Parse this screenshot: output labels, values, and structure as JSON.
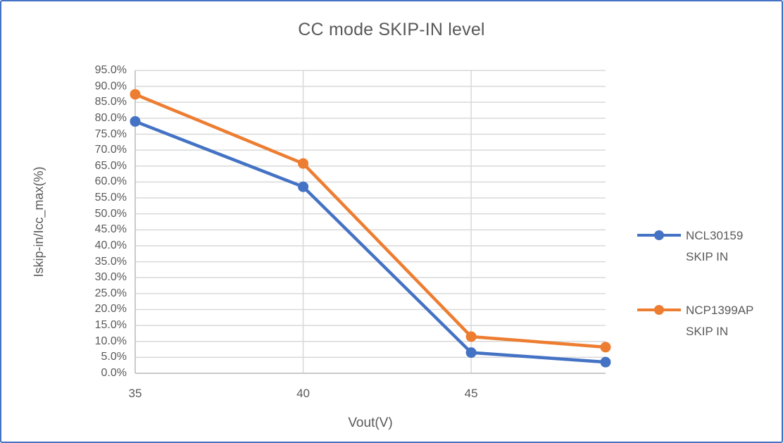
{
  "window": {
    "background": "#FFFFFF",
    "border_color": "#4472C4"
  },
  "chart_data": {
    "type": "line",
    "title": "CC mode SKIP-IN level",
    "xlabel": "Vout(V)",
    "ylabel": "Iskip-in/Icc_max(%)",
    "x": [
      35,
      40,
      45,
      49
    ],
    "series": [
      {
        "name": "NCL30159 SKIP IN",
        "color": "#4472C4",
        "values": [
          79.0,
          58.5,
          6.5,
          3.5
        ]
      },
      {
        "name": "NCP1399AP SKIP IN",
        "color": "#ED7D31",
        "values": [
          87.5,
          65.8,
          11.5,
          8.2
        ]
      }
    ],
    "xlim": [
      35,
      49
    ],
    "ylim": [
      0,
      95
    ],
    "x_ticks": [
      35,
      40,
      45
    ],
    "y_ticks": [
      0,
      5,
      10,
      15,
      20,
      25,
      30,
      35,
      40,
      45,
      50,
      55,
      60,
      65,
      70,
      75,
      80,
      85,
      90,
      95
    ],
    "y_tick_decimals": 1,
    "y_tick_suffix": "%",
    "grid": true,
    "legend_position": "right",
    "colors": {
      "grid": "#D9D9D9",
      "axis": "#BFBFBF",
      "text": "#595959"
    }
  }
}
